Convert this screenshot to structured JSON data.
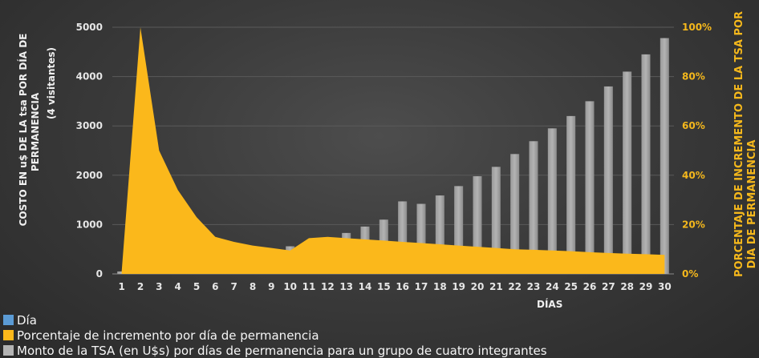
{
  "chart_data": {
    "type": "bar+area",
    "x_label": "DÍAS",
    "y_left_label_lines": [
      "COSTO EN u$ DE LA tsa POR DÍA DE",
      "PERMANENCIA"
    ],
    "y_left_sub_label": "(4 visitantes)",
    "y_right_label_lines": [
      "PORCENTAJE DE INCREMENTO DE LA TSA POR",
      "DÍA DE PERMANENCIA"
    ],
    "y_left_ticks": [
      "0",
      "1000",
      "2000",
      "3000",
      "4000",
      "5000"
    ],
    "y_right_ticks": [
      "0%",
      "20%",
      "40%",
      "60%",
      "80%",
      "100%"
    ],
    "y_left_lim": [
      0,
      5000
    ],
    "y_right_lim": [
      0,
      100
    ],
    "categories": [
      "1",
      "2",
      "3",
      "4",
      "5",
      "6",
      "7",
      "8",
      "9",
      "10",
      "11",
      "12",
      "13",
      "14",
      "15",
      "16",
      "17",
      "18",
      "19",
      "20",
      "21",
      "22",
      "23",
      "24",
      "25",
      "26",
      "27",
      "28",
      "29",
      "30"
    ],
    "series": [
      {
        "name": "Día",
        "kind": "none",
        "color": "#5b9bd5"
      },
      {
        "name": "Porcentaje de incremento por día de permanencia",
        "kind": "area",
        "axis": "right",
        "color": "#fbb81b",
        "values": [
          1,
          100,
          50,
          34,
          23,
          15,
          13,
          11.5,
          10.5,
          9.5,
          14.5,
          15,
          14.5,
          14,
          13.5,
          13,
          12.5,
          12,
          11.5,
          11,
          10.5,
          10,
          9.8,
          9.5,
          9.2,
          8.8,
          8.5,
          8.2,
          8,
          7.7
        ]
      },
      {
        "name": "Monto de la TSA (en U$s) por días de permanencia para un grupo de cuatro integrantes",
        "kind": "bar",
        "axis": "left",
        "color": "#b3b3b3",
        "values": [
          50,
          100,
          160,
          260,
          330,
          380,
          410,
          450,
          510,
          560,
          630,
          730,
          830,
          960,
          1100,
          1470,
          1420,
          1590,
          1780,
          1980,
          2170,
          2430,
          2690,
          2950,
          3200,
          3500,
          3800,
          4100,
          4450,
          4780
        ]
      }
    ],
    "grid": true,
    "legend_position": "bottom-left"
  }
}
